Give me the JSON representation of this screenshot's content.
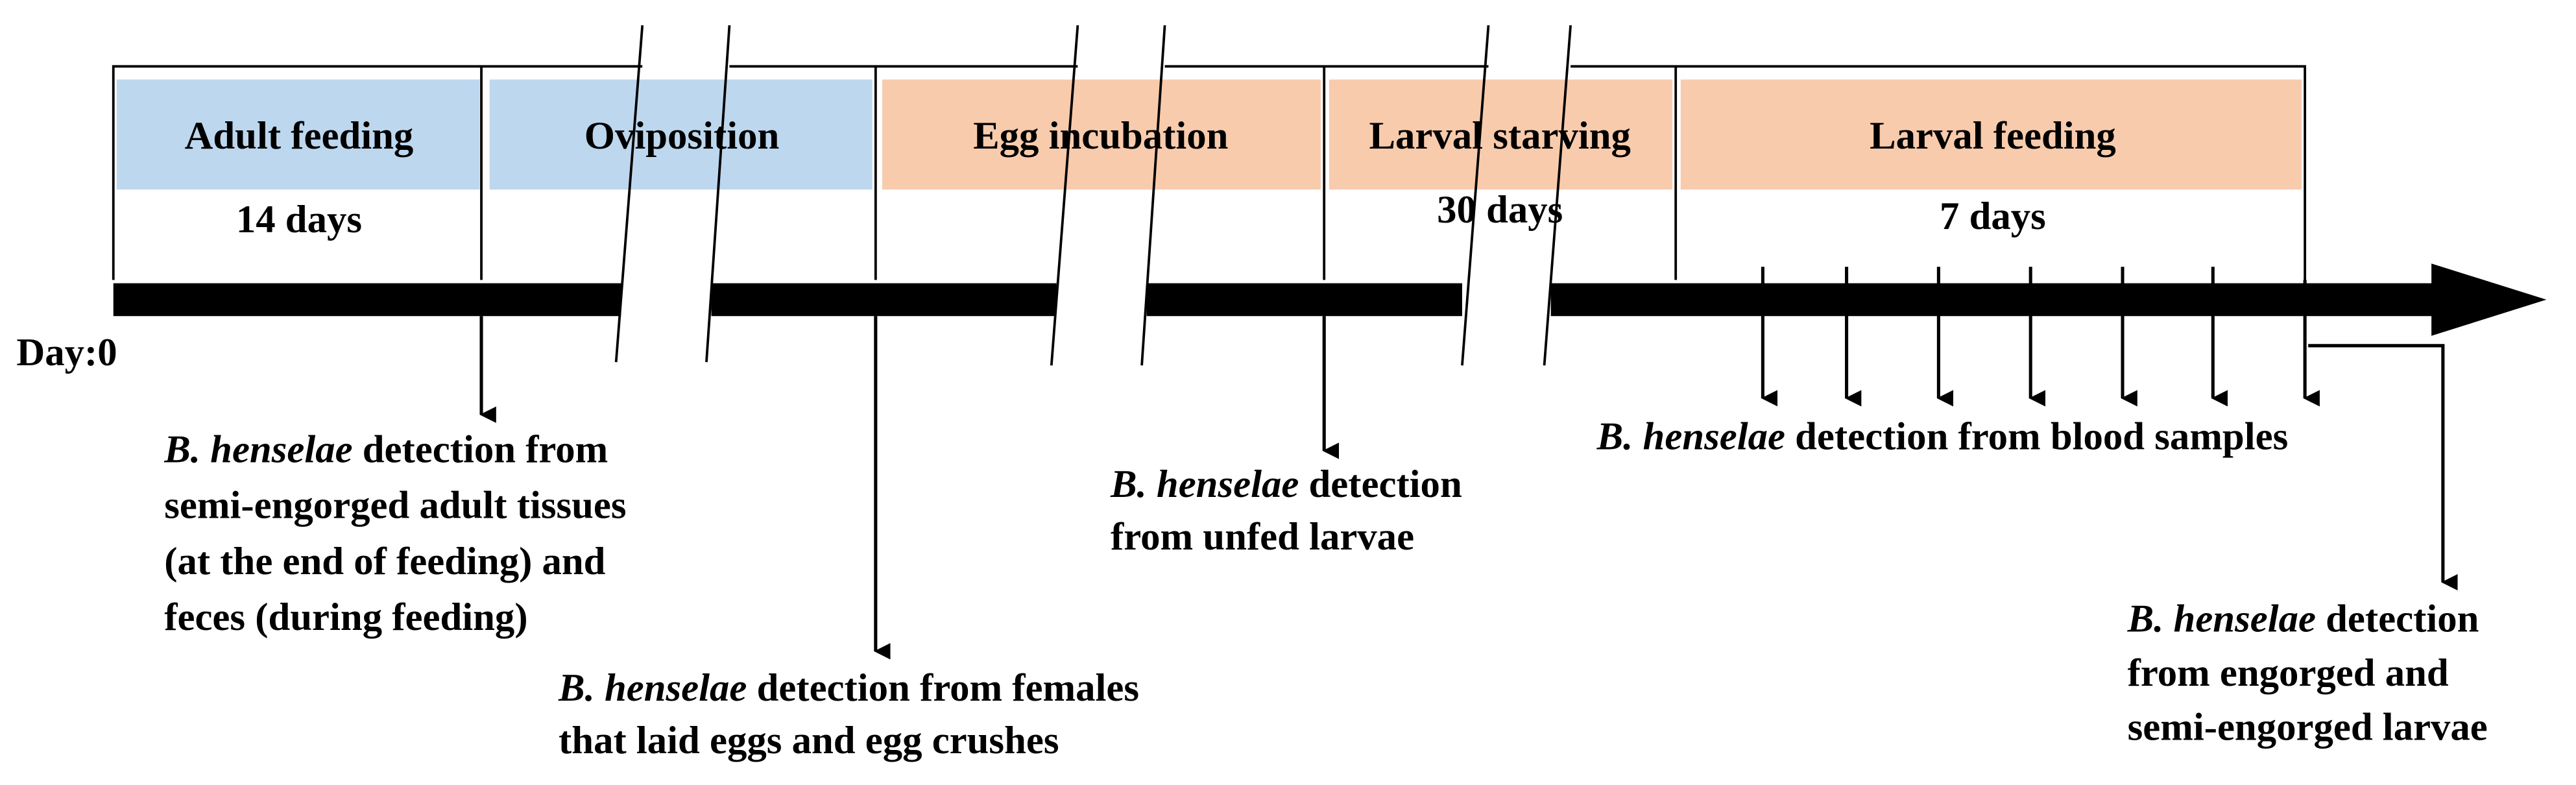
{
  "day_label": "Day:0",
  "stages": [
    {
      "label": "Adult feeding",
      "duration": "14 days"
    },
    {
      "label": "Oviposition"
    },
    {
      "label": "Egg incubation"
    },
    {
      "label": "Larval starving",
      "duration": "30 days"
    },
    {
      "label": "Larval feeding",
      "duration": "7 days"
    }
  ],
  "detections": [
    {
      "species": "B. henselae",
      "lines": [
        "detection from",
        "semi-engorged adult tissues",
        "(at the end of feeding) and",
        "feces (during feeding)"
      ]
    },
    {
      "species": "B. henselae",
      "lines": [
        "detection from females",
        "that laid eggs and egg crushes"
      ]
    },
    {
      "species": "B. henselae",
      "lines": [
        "detection",
        "from unfed larvae"
      ]
    },
    {
      "species": "B. henselae",
      "lines": [
        "detection from blood samples"
      ]
    },
    {
      "species": "B. henselae",
      "lines": [
        "detection",
        "from engorged and",
        "semi-engorged larvae"
      ]
    }
  ]
}
